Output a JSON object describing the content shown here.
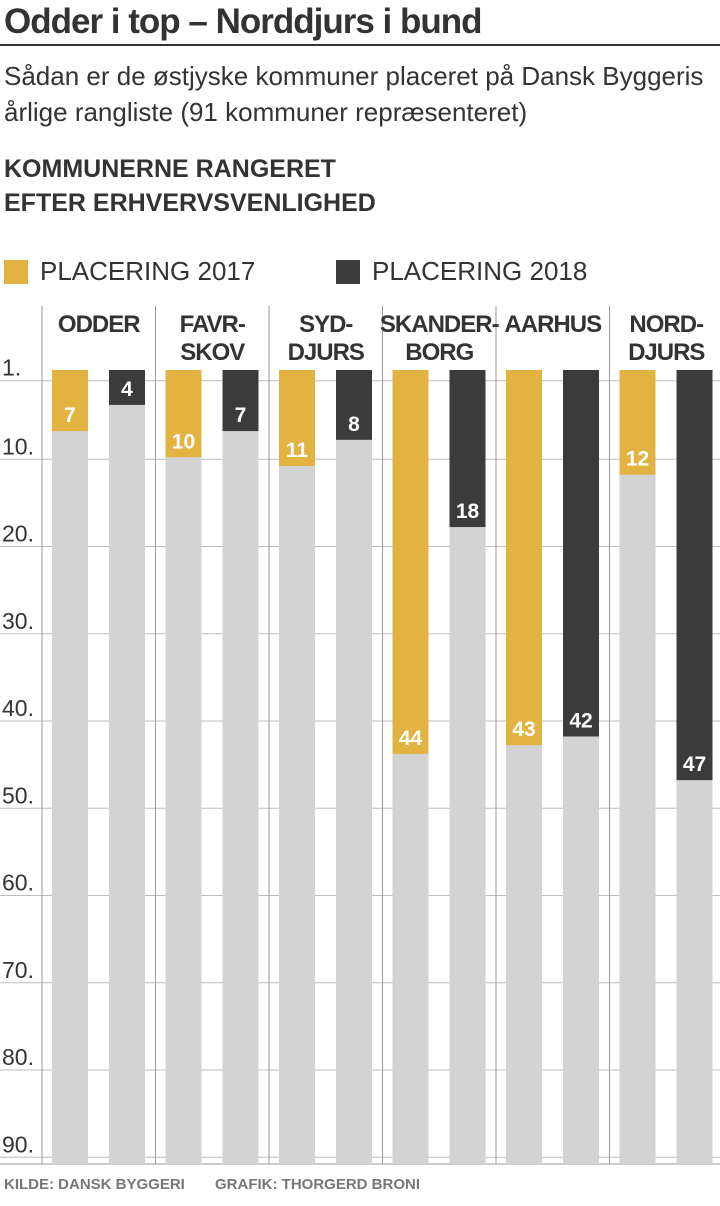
{
  "title": "Odder i top – Norddjurs i bund",
  "subtitle": "Sådan er de østjyske kommuner placeret på Dansk Byggeris årlige rangliste (91 kommuner repræsenteret)",
  "heading_line1": "KOMMUNERNE RANGERET",
  "heading_line2": "EFTER ERHVERVSVENLIGHED",
  "source": "KILDE: DANSK BYGGERI",
  "credit": "GRAFIK: THORGERD BRONI",
  "colors": {
    "y2017": "#e3b342",
    "y2018": "#3b3b3b",
    "track": "#d3d3d3",
    "text": "#333333"
  },
  "chart_data": {
    "type": "bar",
    "title": "KOMMUNERNE RANGERET EFTER ERHVERVSVENLIGHED",
    "categories": [
      [
        "ODDER"
      ],
      [
        "FAVR-",
        "SKOV"
      ],
      [
        "SYD-",
        "DJURS"
      ],
      [
        "SKANDER-",
        "BORG"
      ],
      [
        "AARHUS"
      ],
      [
        "NORD-",
        "DJURS"
      ]
    ],
    "series": [
      {
        "name": "PLACERING 2017",
        "values": [
          7,
          10,
          11,
          44,
          43,
          12
        ]
      },
      {
        "name": "PLACERING 2018",
        "values": [
          4,
          7,
          8,
          18,
          42,
          47
        ]
      }
    ],
    "yticks": [
      "1.",
      "10.",
      "20.",
      "30.",
      "40.",
      "50.",
      "60.",
      "70.",
      "80.",
      "90."
    ],
    "ytick_values": [
      1,
      10,
      20,
      30,
      40,
      50,
      60,
      70,
      80,
      90
    ],
    "ylim": [
      0,
      91
    ],
    "y_inverted": true,
    "legend": "top-left",
    "grid": true
  }
}
